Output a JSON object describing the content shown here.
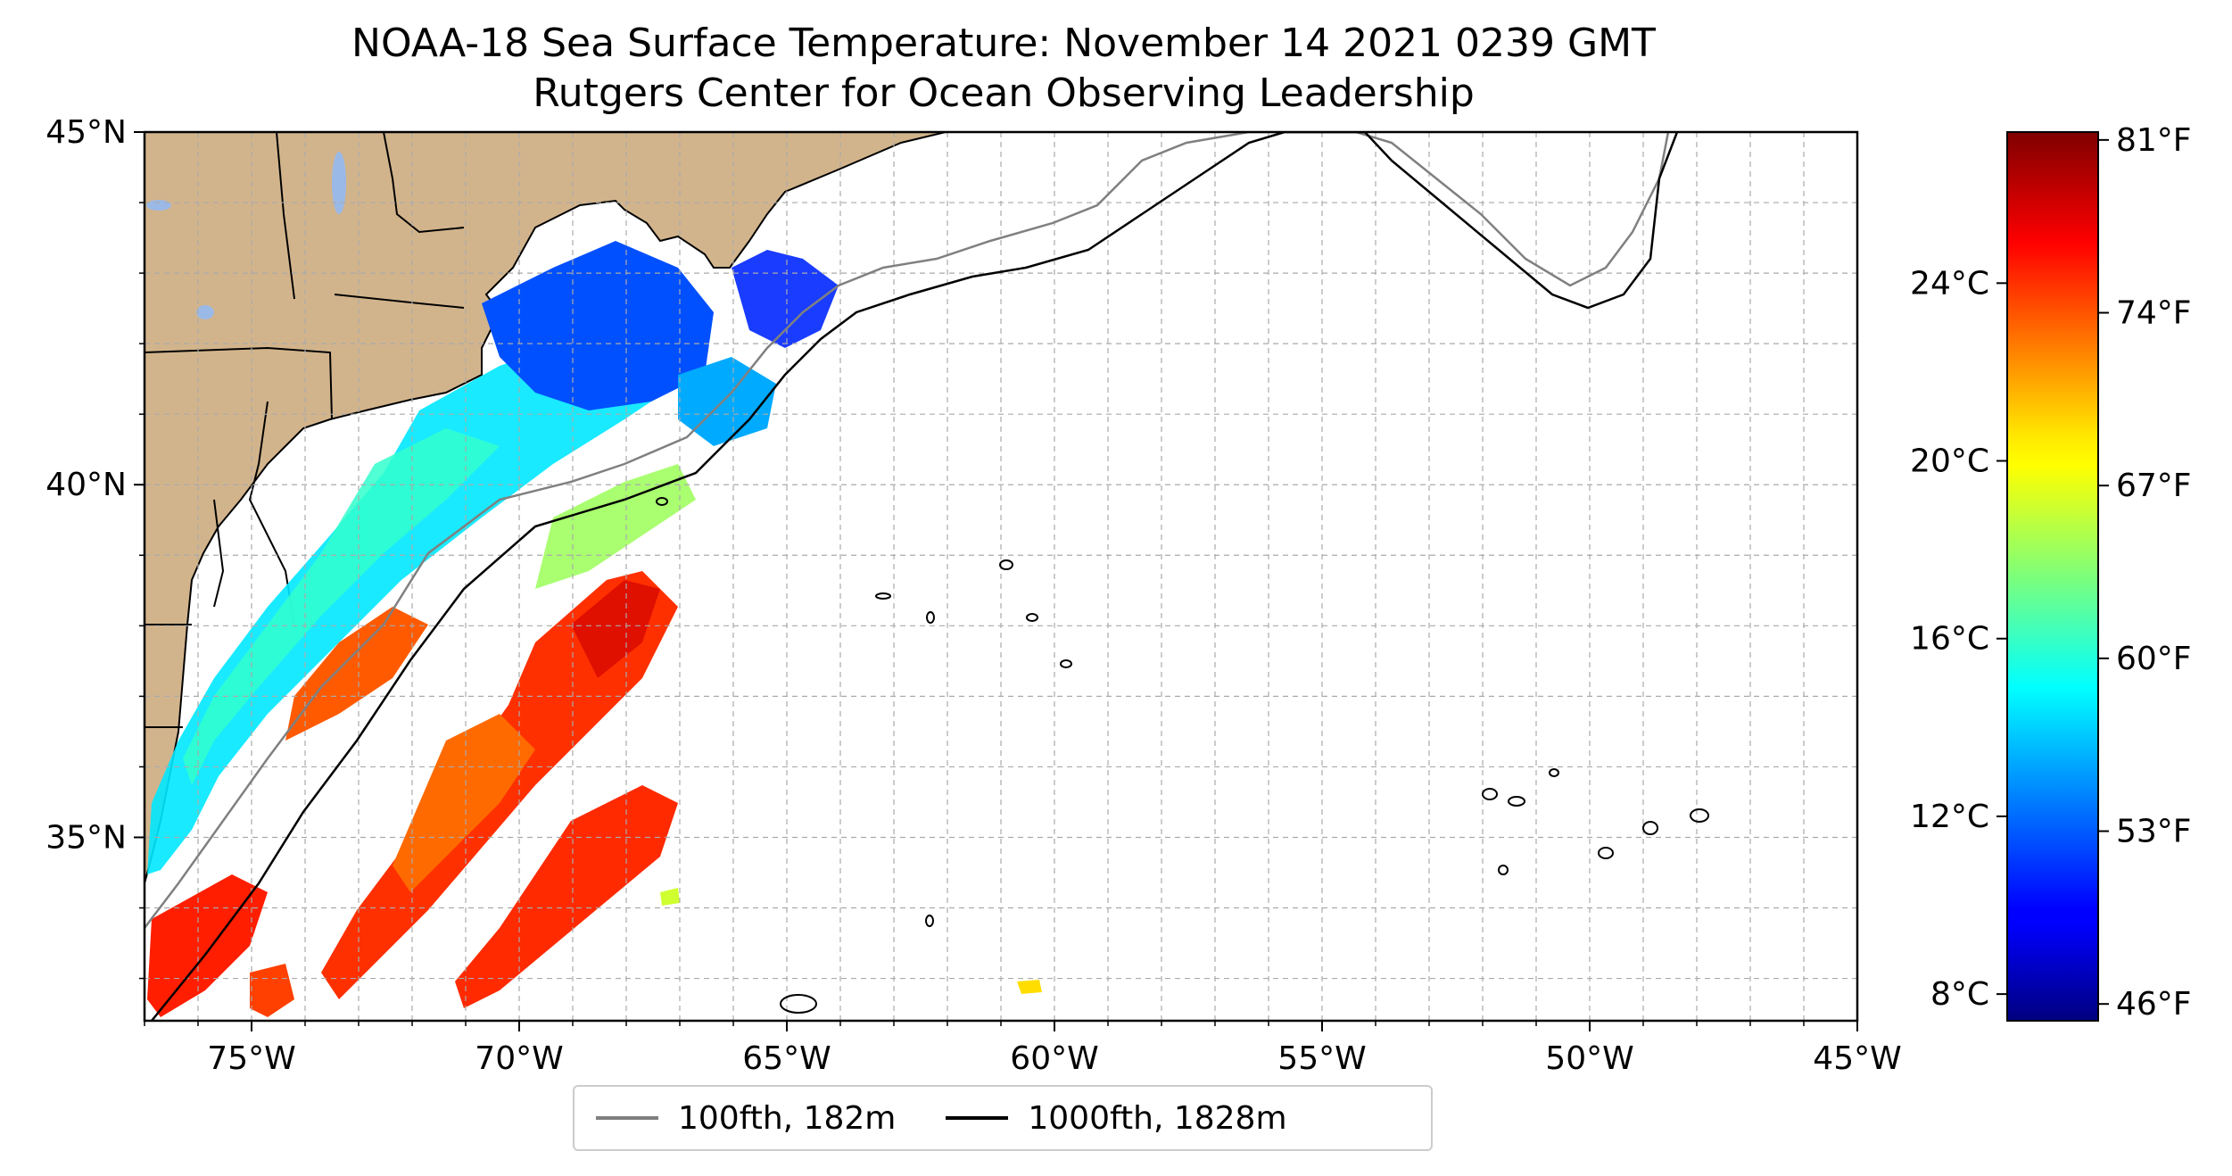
{
  "title": {
    "line1": "NOAA-18 Sea Surface Temperature: November 14 2021 0239 GMT",
    "line2": "Rutgers Center for Ocean Observing Leadership"
  },
  "map": {
    "lon_range": [
      -77,
      -45
    ],
    "lat_range": [
      32.4,
      45
    ],
    "lon_ticks": [
      "75°W",
      "70°W",
      "65°W",
      "60°W",
      "55°W",
      "50°W",
      "45°W"
    ],
    "lat_ticks": [
      "45°N",
      "40°N",
      "35°N"
    ],
    "grid": true,
    "land_color": "#d2b48c",
    "lake_color": "#9bb9e6"
  },
  "colorbar": {
    "colormap": "jet",
    "range_c": [
      7.4,
      27.4
    ],
    "celsius_ticks": [
      "8°C",
      "12°C",
      "16°C",
      "20°C",
      "24°C"
    ],
    "fahrenheit_ticks": [
      "46°F",
      "53°F",
      "60°F",
      "67°F",
      "74°F",
      "81°F"
    ]
  },
  "legend": {
    "items": [
      {
        "label": "100fth, 182m",
        "color": "#808080"
      },
      {
        "label": "1000fth, 1828m",
        "color": "#000000"
      }
    ]
  }
}
